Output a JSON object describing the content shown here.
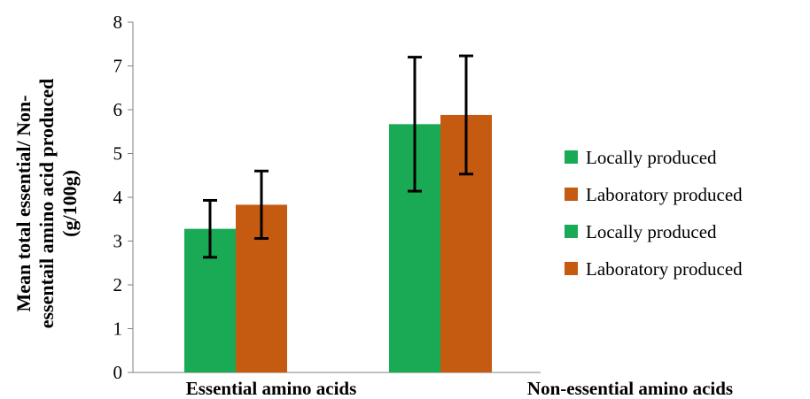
{
  "chart_data": {
    "type": "bar",
    "title": "",
    "xlabel": "",
    "ylabel_lines": [
      "Mean total essential/ Non-",
      "essentail amino acid produced",
      "(g/100g)"
    ],
    "categories": [
      "Essential amino acids",
      "Non-essential amino acids"
    ],
    "ylim": [
      0,
      8
    ],
    "yticks": [
      0,
      1,
      2,
      3,
      4,
      5,
      6,
      7,
      8
    ],
    "grid": false,
    "legend_position": "right",
    "series": [
      {
        "name": "Locally produced",
        "color": "#1aaa55",
        "values": [
          3.28,
          5.67
        ],
        "error": [
          0.65,
          1.53
        ]
      },
      {
        "name": "Laboratory produced",
        "color": "#c55a11",
        "values": [
          3.83,
          5.88
        ],
        "error": [
          0.77,
          1.35
        ]
      }
    ],
    "legend_entries": [
      {
        "label": "Locally produced",
        "color": "#1aaa55"
      },
      {
        "label": "Laboratory produced",
        "color": "#c55a11"
      },
      {
        "label": "Locally produced",
        "color": "#1aaa55"
      },
      {
        "label": "Laboratory produced",
        "color": "#c55a11"
      }
    ]
  }
}
